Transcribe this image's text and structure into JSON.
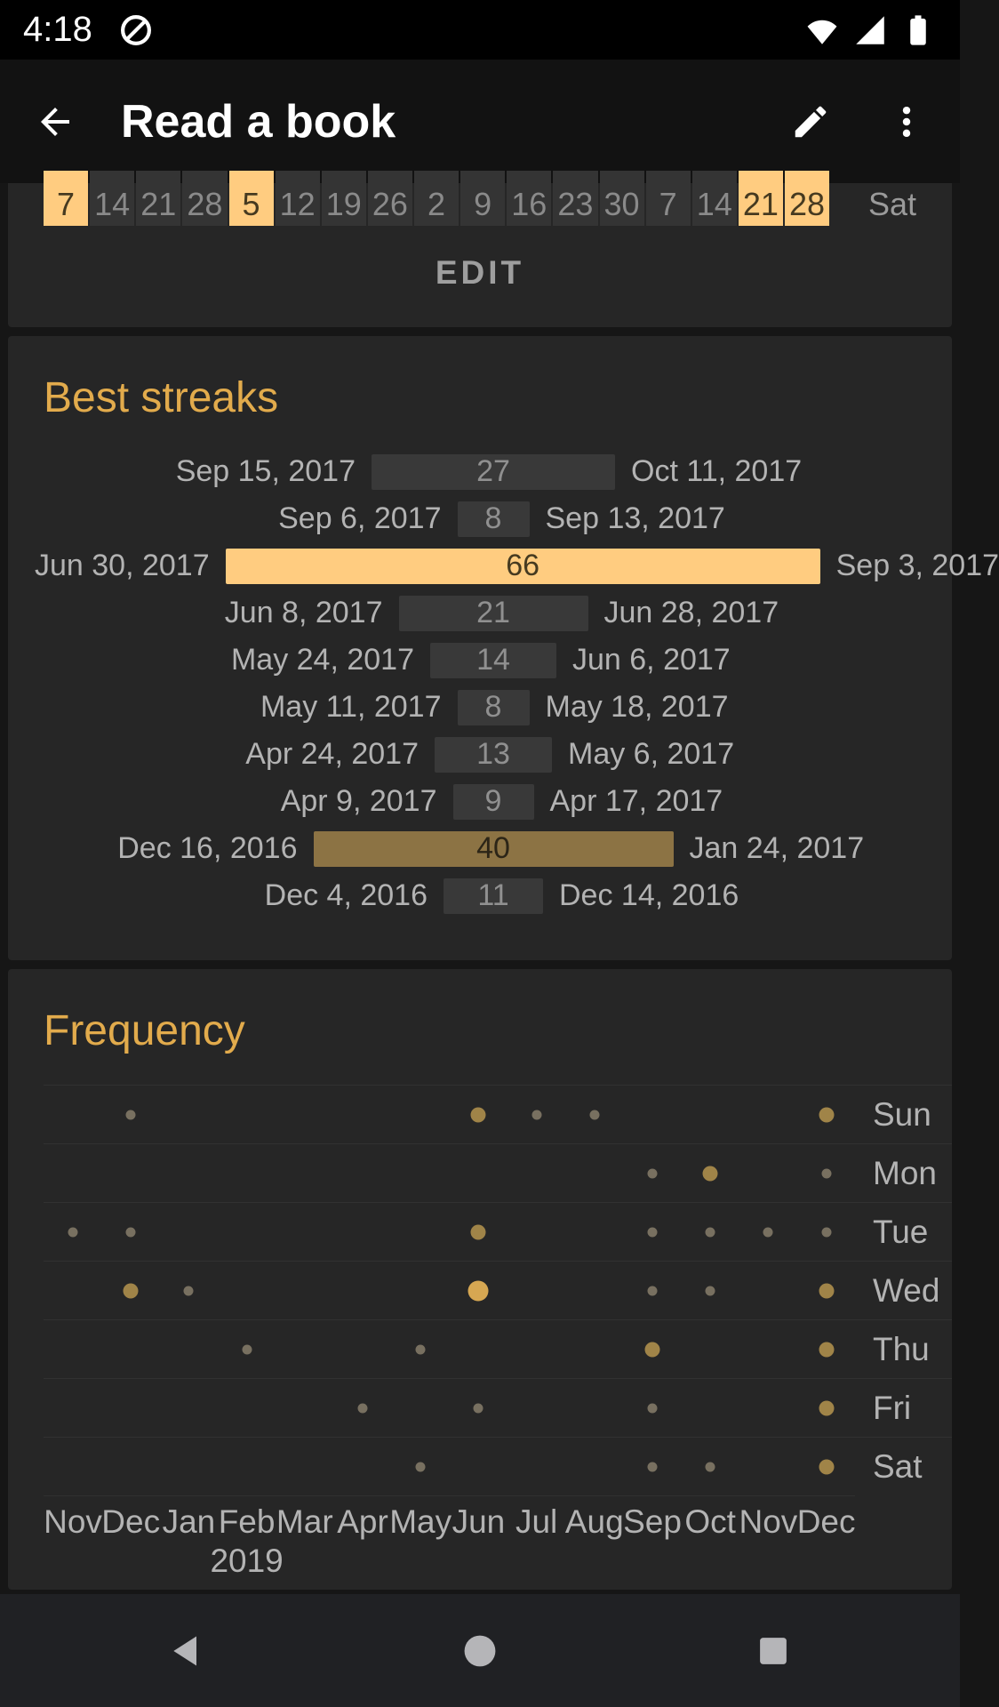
{
  "status_bar": {
    "time": "4:18"
  },
  "app_bar": {
    "title": "Read a book"
  },
  "calendar_card": {
    "cells": [
      {
        "day": "7",
        "highlight": true
      },
      {
        "day": "14",
        "highlight": false
      },
      {
        "day": "21",
        "highlight": false
      },
      {
        "day": "28",
        "highlight": false
      },
      {
        "day": "5",
        "highlight": true
      },
      {
        "day": "12",
        "highlight": false
      },
      {
        "day": "19",
        "highlight": false
      },
      {
        "day": "26",
        "highlight": false
      },
      {
        "day": "2",
        "highlight": false
      },
      {
        "day": "9",
        "highlight": false
      },
      {
        "day": "16",
        "highlight": false
      },
      {
        "day": "23",
        "highlight": false
      },
      {
        "day": "30",
        "highlight": false
      },
      {
        "day": "7",
        "highlight": false
      },
      {
        "day": "14",
        "highlight": false
      },
      {
        "day": "21",
        "highlight": true
      },
      {
        "day": "28",
        "highlight": true
      }
    ],
    "weekday_label": "Sat",
    "edit_label": "EDIT"
  },
  "best_streaks": {
    "title": "Best streaks",
    "entries": [
      {
        "start": "Sep 15, 2017",
        "length": 27,
        "end": "Oct 11, 2017",
        "tone": "gray"
      },
      {
        "start": "Sep 6, 2017",
        "length": 8,
        "end": "Sep 13, 2017",
        "tone": "gray"
      },
      {
        "start": "Jun 30, 2017",
        "length": 66,
        "end": "Sep 3, 2017",
        "tone": "bright"
      },
      {
        "start": "Jun 8, 2017",
        "length": 21,
        "end": "Jun 28, 2017",
        "tone": "gray"
      },
      {
        "start": "May 24, 2017",
        "length": 14,
        "end": "Jun 6, 2017",
        "tone": "gray"
      },
      {
        "start": "May 11, 2017",
        "length": 8,
        "end": "May 18, 2017",
        "tone": "gray"
      },
      {
        "start": "Apr 24, 2017",
        "length": 13,
        "end": "May 6, 2017",
        "tone": "gray"
      },
      {
        "start": "Apr 9, 2017",
        "length": 9,
        "end": "Apr 17, 2017",
        "tone": "gray"
      },
      {
        "start": "Dec 16, 2016",
        "length": 40,
        "end": "Jan 24, 2017",
        "tone": "medium"
      },
      {
        "start": "Dec 4, 2016",
        "length": 11,
        "end": "Dec 14, 2016",
        "tone": "gray"
      }
    ]
  },
  "frequency": {
    "title": "Frequency",
    "day_labels": [
      "Sun",
      "Mon",
      "Tue",
      "Wed",
      "Thu",
      "Fri",
      "Sat"
    ],
    "month_labels": [
      "Nov",
      "Dec",
      "Jan",
      "Feb",
      "Mar",
      "Apr",
      "May",
      "Jun",
      "Jul",
      "Aug",
      "Sep",
      "Oct",
      "Nov",
      "Dec"
    ],
    "year_label": {
      "text": "2019",
      "column": 3
    },
    "dots": [
      [
        {
          "col": 1,
          "size": "s"
        },
        {
          "col": 7,
          "size": "m"
        },
        {
          "col": 8,
          "size": "s"
        },
        {
          "col": 9,
          "size": "s"
        },
        {
          "col": 13,
          "size": "m"
        }
      ],
      [
        {
          "col": 10,
          "size": "s"
        },
        {
          "col": 11,
          "size": "m"
        },
        {
          "col": 13,
          "size": "s"
        }
      ],
      [
        {
          "col": 0,
          "size": "s"
        },
        {
          "col": 1,
          "size": "s"
        },
        {
          "col": 7,
          "size": "m"
        },
        {
          "col": 10,
          "size": "s"
        },
        {
          "col": 11,
          "size": "s"
        },
        {
          "col": 12,
          "size": "s"
        },
        {
          "col": 13,
          "size": "s"
        }
      ],
      [
        {
          "col": 1,
          "size": "m"
        },
        {
          "col": 2,
          "size": "s"
        },
        {
          "col": 7,
          "size": "l"
        },
        {
          "col": 10,
          "size": "s"
        },
        {
          "col": 11,
          "size": "s"
        },
        {
          "col": 13,
          "size": "m"
        }
      ],
      [
        {
          "col": 3,
          "size": "s"
        },
        {
          "col": 6,
          "size": "s"
        },
        {
          "col": 10,
          "size": "m"
        },
        {
          "col": 13,
          "size": "m"
        }
      ],
      [
        {
          "col": 5,
          "size": "s"
        },
        {
          "col": 7,
          "size": "s"
        },
        {
          "col": 10,
          "size": "s"
        },
        {
          "col": 13,
          "size": "m"
        }
      ],
      [
        {
          "col": 6,
          "size": "s"
        },
        {
          "col": 10,
          "size": "s"
        },
        {
          "col": 11,
          "size": "s"
        },
        {
          "col": 13,
          "size": "m"
        }
      ]
    ]
  },
  "colors": {
    "accent": "#ffcc80",
    "section_title": "#e2ab4c",
    "medium_bar": "#8c7344",
    "card_bg": "#262626"
  }
}
